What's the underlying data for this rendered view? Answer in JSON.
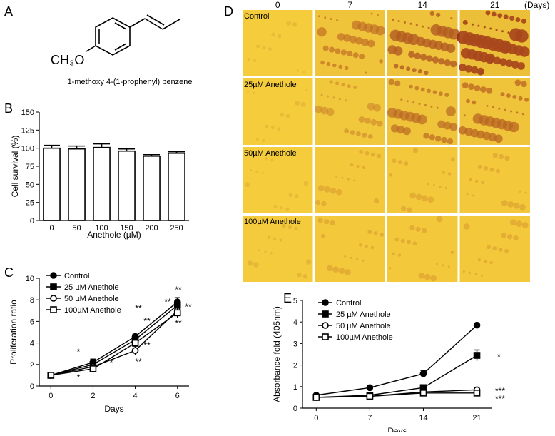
{
  "panels": {
    "A": {
      "letter": "A",
      "formula_label": "CH₃O",
      "caption": "1-methoxy 4-(1-prophenyl) benzene"
    },
    "D": {
      "letter": "D",
      "day_headers": [
        "0",
        "7",
        "14",
        "21"
      ],
      "unit_label": "(Days)",
      "row_labels": [
        "Control",
        "25µM Anethole",
        "50µM Anethole",
        "100µM Anethole"
      ],
      "stain_level": [
        [
          0.05,
          0.55,
          0.75,
          0.95
        ],
        [
          0.05,
          0.35,
          0.6,
          0.65
        ],
        [
          0.05,
          0.2,
          0.2,
          0.2
        ],
        [
          0.1,
          0.2,
          0.2,
          0.2
        ]
      ]
    }
  },
  "chart_data": [
    {
      "panel": "B",
      "type": "bar",
      "ylabel": "Cell survival (%)",
      "xlabel": "Anethole (µM)",
      "categories": [
        "0",
        "50",
        "100",
        "150",
        "200",
        "250"
      ],
      "values": [
        100,
        99,
        101,
        96,
        89,
        93
      ],
      "errors": [
        4,
        4,
        5,
        3,
        2,
        2
      ],
      "ylim": [
        0,
        150
      ],
      "yticks": [
        "0",
        "25",
        "50",
        "75",
        "100",
        "125",
        "150"
      ]
    },
    {
      "panel": "C",
      "type": "line",
      "ylabel": "Proliferation ratio",
      "xlabel": "Days",
      "x": [
        0,
        2,
        4,
        6
      ],
      "xticks": [
        "0",
        "2",
        "4",
        "6"
      ],
      "ylim": [
        0,
        10
      ],
      "yticks": [
        "0",
        "2",
        "4",
        "6",
        "8",
        "10"
      ],
      "series": [
        {
          "name": "Control",
          "values": [
            1.0,
            2.2,
            4.6,
            7.8
          ],
          "errors": [
            0.1,
            0.3,
            0.2,
            0.4
          ]
        },
        {
          "name": "25 µM Anethole",
          "values": [
            1.0,
            2.0,
            4.3,
            7.5
          ],
          "errors": [
            0.1,
            0.3,
            0.2,
            0.4
          ]
        },
        {
          "name": "50 µM Anethole",
          "values": [
            1.0,
            1.8,
            3.3,
            7.0
          ],
          "errors": [
            0.1,
            0.2,
            0.4,
            0.5
          ]
        },
        {
          "name": "100µM Anethole",
          "values": [
            1.0,
            1.6,
            4.0,
            6.8
          ],
          "errors": [
            0.1,
            0.2,
            0.3,
            0.5
          ]
        }
      ],
      "annotations": [
        "*",
        "*",
        "*",
        "**",
        "**",
        "**",
        "**",
        "**",
        "**",
        "**",
        "**"
      ]
    },
    {
      "panel": "E",
      "type": "line",
      "ylabel": "Absorbance fold (405nm)",
      "xlabel": "Days",
      "x": [
        0,
        7,
        14,
        21
      ],
      "xticks": [
        "0",
        "7",
        "14",
        "21"
      ],
      "ylim": [
        0,
        5
      ],
      "yticks": [
        "0",
        "1",
        "2",
        "3",
        "4",
        "5"
      ],
      "series": [
        {
          "name": "Control",
          "values": [
            0.6,
            0.95,
            1.6,
            3.85
          ],
          "errors": [
            0.05,
            0.08,
            0.15,
            0.05
          ]
        },
        {
          "name": "25 µM Anethole",
          "values": [
            0.5,
            0.6,
            0.95,
            2.45
          ],
          "errors": [
            0.05,
            0.05,
            0.1,
            0.25
          ]
        },
        {
          "name": "50 µM Anethole",
          "values": [
            0.5,
            0.55,
            0.75,
            0.85
          ],
          "errors": [
            0.05,
            0.05,
            0.05,
            0.05
          ]
        },
        {
          "name": "100µM Anethole",
          "values": [
            0.5,
            0.55,
            0.7,
            0.7
          ],
          "errors": [
            0.05,
            0.05,
            0.05,
            0.05
          ]
        }
      ],
      "annotations": [
        "*",
        "***",
        "***"
      ]
    }
  ]
}
